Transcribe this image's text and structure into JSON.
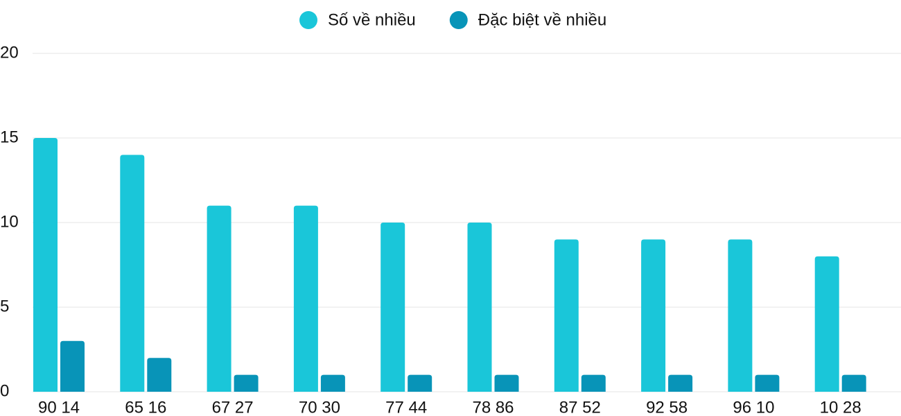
{
  "chart_data": {
    "type": "bar",
    "categories": [
      "90 14",
      "65 16",
      "67 27",
      "70 30",
      "77 44",
      "78 86",
      "87 52",
      "92 58",
      "96 10",
      "10 28"
    ],
    "series": [
      {
        "name": "Số về nhiều",
        "color": "#1ac6d9",
        "values": [
          15,
          14,
          11,
          11,
          10,
          10,
          9,
          9,
          9,
          8
        ]
      },
      {
        "name": "Đặc biệt về nhiều",
        "color": "#0894b8",
        "values": [
          3,
          2,
          1,
          1,
          1,
          1,
          1,
          1,
          1,
          1
        ]
      }
    ],
    "ylim": [
      0,
      20
    ],
    "yticks": [
      0,
      5,
      10,
      15,
      20
    ],
    "grid": true,
    "legend": "top"
  }
}
